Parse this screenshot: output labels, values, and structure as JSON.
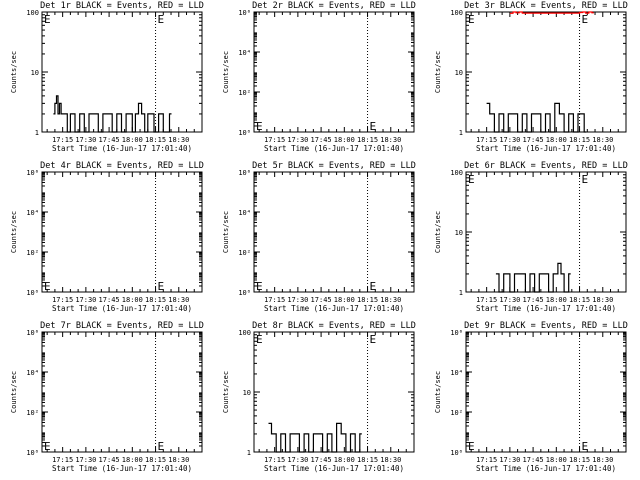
{
  "figure": {
    "panels": [
      {
        "title": "Det 1r BLACK = Events, RED = LLD",
        "ylabel": "Counts/sec",
        "yscale": "log",
        "ylim": [
          1,
          100
        ],
        "yticks": [
          "1",
          "10",
          "100"
        ],
        "event_markers": [
          {
            "t": "17:01:40",
            "label": "E"
          },
          {
            "t": "18:15",
            "label": "E"
          }
        ]
      },
      {
        "title": "Det 2r BLACK = Events, RED = LLD",
        "ylabel": "Counts/sec",
        "yscale": "log",
        "ylim": [
          1,
          1000000
        ],
        "yticks": [
          "10⁰",
          "10²",
          "10⁴",
          "10⁶"
        ],
        "event_markers": [
          {
            "t": "17:01:40",
            "label": "E"
          },
          {
            "t": "18:15",
            "label": "E"
          }
        ]
      },
      {
        "title": "Det 3r BLACK = Events, RED = LLD",
        "ylabel": "Counts/sec",
        "yscale": "log",
        "ylim": [
          1,
          100
        ],
        "yticks": [
          "1",
          "10",
          "100"
        ],
        "event_markers": [
          {
            "t": "17:01:40",
            "label": "E"
          },
          {
            "t": "18:15",
            "label": "E"
          }
        ]
      },
      {
        "title": "Det 4r BLACK = Events, RED = LLD",
        "ylabel": "Counts/sec",
        "yscale": "log",
        "ylim": [
          1,
          1000000
        ],
        "yticks": [
          "10⁰",
          "10²",
          "10⁴",
          "10⁶"
        ],
        "event_markers": [
          {
            "t": "17:01:40",
            "label": "E"
          },
          {
            "t": "18:15",
            "label": "E"
          }
        ]
      },
      {
        "title": "Det 5r BLACK = Events, RED = LLD",
        "ylabel": "Counts/sec",
        "yscale": "log",
        "ylim": [
          1,
          1000000
        ],
        "yticks": [
          "10⁰",
          "10²",
          "10⁴",
          "10⁶"
        ],
        "event_markers": [
          {
            "t": "17:01:40",
            "label": "E"
          },
          {
            "t": "18:15",
            "label": "E"
          }
        ]
      },
      {
        "title": "Det 6r BLACK = Events, RED = LLD",
        "ylabel": "Counts/sec",
        "yscale": "log",
        "ylim": [
          1,
          100
        ],
        "yticks": [
          "1",
          "10",
          "100"
        ],
        "event_markers": [
          {
            "t": "17:01:40",
            "label": "E"
          },
          {
            "t": "18:15",
            "label": "E"
          }
        ]
      },
      {
        "title": "Det 7r BLACK = Events, RED = LLD",
        "ylabel": "Counts/sec",
        "yscale": "log",
        "ylim": [
          1,
          1000000
        ],
        "yticks": [
          "10⁰",
          "10²",
          "10⁴",
          "10⁶"
        ],
        "event_markers": [
          {
            "t": "17:01:40",
            "label": "E"
          },
          {
            "t": "18:15",
            "label": "E"
          }
        ]
      },
      {
        "title": "Det 8r BLACK = Events, RED = LLD",
        "ylabel": "Counts/sec",
        "yscale": "log",
        "ylim": [
          1,
          100
        ],
        "yticks": [
          "1",
          "10",
          "100"
        ],
        "event_markers": [
          {
            "t": "17:01:40",
            "label": "E"
          },
          {
            "t": "18:15",
            "label": "E"
          }
        ]
      },
      {
        "title": "Det 9r BLACK = Events, RED = LLD",
        "ylabel": "Counts/sec",
        "yscale": "log",
        "ylim": [
          1,
          1000000
        ],
        "yticks": [
          "10⁰",
          "10²",
          "10⁴",
          "10⁶"
        ],
        "event_markers": [
          {
            "t": "17:01:40",
            "label": "E"
          },
          {
            "t": "18:15",
            "label": "E"
          }
        ]
      }
    ],
    "xlabel": "Start Time (16-Jun-17 17:01:40)",
    "xticks": [
      "17:15",
      "17:30",
      "17:45",
      "18:00",
      "18:15",
      "18:30"
    ],
    "xlim": [
      "17:01:40",
      "18:45"
    ],
    "colors": {
      "events": "#000000",
      "lld": "#ff0000"
    }
  },
  "chart_data": [
    {
      "type": "line",
      "title": "Det 1r BLACK = Events, RED = LLD",
      "xlabel": "Start Time (16-Jun-17 17:01:40)",
      "ylabel": "Counts/sec",
      "yscale": "log",
      "ylim": [
        1,
        100
      ],
      "series": [
        {
          "name": "Events",
          "color": "#000000",
          "x": [
            "17:09",
            "17:10",
            "17:11",
            "17:12",
            "17:13",
            "17:14",
            "17:16",
            "17:18",
            "17:20",
            "17:23",
            "17:26",
            "17:29",
            "17:32",
            "17:35",
            "17:38",
            "17:41",
            "17:44",
            "17:47",
            "17:50",
            "17:53",
            "17:56",
            "17:58",
            "18:00",
            "18:02",
            "18:04",
            "18:06",
            "18:08",
            "18:10",
            "18:12",
            "18:14",
            "18:17",
            "18:20",
            "18:24"
          ],
          "y": [
            2,
            3,
            4,
            2,
            3,
            2,
            2,
            1,
            2,
            1,
            2,
            1,
            2,
            2,
            1,
            2,
            2,
            1,
            2,
            1,
            2,
            2,
            1,
            2,
            3,
            2,
            1,
            2,
            2,
            1,
            2,
            1,
            2
          ]
        }
      ]
    },
    {
      "type": "line",
      "title": "Det 2r BLACK = Events, RED = LLD",
      "xlabel": "Start Time (16-Jun-17 17:01:40)",
      "ylabel": "Counts/sec",
      "yscale": "log",
      "ylim": [
        1,
        1000000
      ],
      "series": []
    },
    {
      "type": "line",
      "title": "Det 3r BLACK = Events, RED = LLD",
      "xlabel": "Start Time (16-Jun-17 17:01:40)",
      "ylabel": "Counts/sec",
      "yscale": "log",
      "ylim": [
        1,
        100
      ],
      "series": [
        {
          "name": "Events",
          "color": "#000000",
          "x": [
            "17:15",
            "17:17",
            "17:20",
            "17:23",
            "17:26",
            "17:29",
            "17:32",
            "17:35",
            "17:38",
            "17:41",
            "17:44",
            "17:47",
            "17:50",
            "17:53",
            "17:56",
            "17:59",
            "18:02",
            "18:05",
            "18:08",
            "18:11",
            "18:14",
            "18:18"
          ],
          "y": [
            3,
            2,
            1,
            2,
            1,
            2,
            2,
            1,
            2,
            1,
            2,
            2,
            1,
            2,
            1,
            3,
            2,
            1,
            2,
            1,
            2,
            1
          ]
        },
        {
          "name": "LLD",
          "color": "#ff0000",
          "x": [
            "17:30",
            "17:32",
            "17:34",
            "17:36",
            "17:38",
            "18:15",
            "18:17",
            "18:19",
            "18:21",
            "18:23"
          ],
          "y": [
            95,
            100,
            97,
            100,
            96,
            98,
            100,
            96,
            100,
            97
          ]
        }
      ]
    },
    {
      "type": "line",
      "title": "Det 4r BLACK = Events, RED = LLD",
      "xlabel": "Start Time (16-Jun-17 17:01:40)",
      "ylabel": "Counts/sec",
      "yscale": "log",
      "ylim": [
        1,
        1000000
      ],
      "series": []
    },
    {
      "type": "line",
      "title": "Det 5r BLACK = Events, RED = LLD",
      "xlabel": "Start Time (16-Jun-17 17:01:40)",
      "ylabel": "Counts/sec",
      "yscale": "log",
      "ylim": [
        1,
        1000000
      ],
      "series": []
    },
    {
      "type": "line",
      "title": "Det 6r BLACK = Events, RED = LLD",
      "xlabel": "Start Time (16-Jun-17 17:01:40)",
      "ylabel": "Counts/sec",
      "yscale": "log",
      "ylim": [
        1,
        100
      ],
      "series": [
        {
          "name": "Events",
          "color": "#000000",
          "x": [
            "17:21",
            "17:23",
            "17:26",
            "17:30",
            "17:33",
            "17:36",
            "17:40",
            "17:43",
            "17:46",
            "17:49",
            "17:52",
            "17:55",
            "17:58",
            "18:01",
            "18:03",
            "18:05",
            "18:08"
          ],
          "y": [
            2,
            1,
            2,
            1,
            2,
            2,
            1,
            2,
            1,
            2,
            2,
            1,
            2,
            3,
            2,
            1,
            2
          ]
        }
      ]
    },
    {
      "type": "line",
      "title": "Det 7r BLACK = Events, RED = LLD",
      "xlabel": "Start Time (16-Jun-17 17:01:40)",
      "ylabel": "Counts/sec",
      "yscale": "log",
      "ylim": [
        1,
        1000000
      ],
      "series": []
    },
    {
      "type": "line",
      "title": "Det 8r BLACK = Events, RED = LLD",
      "xlabel": "Start Time (16-Jun-17 17:01:40)",
      "ylabel": "Counts/sec",
      "yscale": "log",
      "ylim": [
        1,
        100
      ],
      "series": [
        {
          "name": "Events",
          "color": "#000000",
          "x": [
            "17:11",
            "17:13",
            "17:16",
            "17:19",
            "17:22",
            "17:25",
            "17:28",
            "17:31",
            "17:34",
            "17:37",
            "17:40",
            "17:43",
            "17:46",
            "17:49",
            "17:52",
            "17:55",
            "17:58",
            "18:01",
            "18:04",
            "18:07",
            "18:10"
          ],
          "y": [
            3,
            2,
            1,
            2,
            1,
            2,
            2,
            1,
            2,
            1,
            2,
            2,
            1,
            2,
            1,
            3,
            2,
            1,
            2,
            1,
            2
          ]
        }
      ]
    },
    {
      "type": "line",
      "title": "Det 9r BLACK = Events, RED = LLD",
      "xlabel": "Start Time (16-Jun-17 17:01:40)",
      "ylabel": "Counts/sec",
      "yscale": "log",
      "ylim": [
        1,
        1000000
      ],
      "series": []
    }
  ]
}
